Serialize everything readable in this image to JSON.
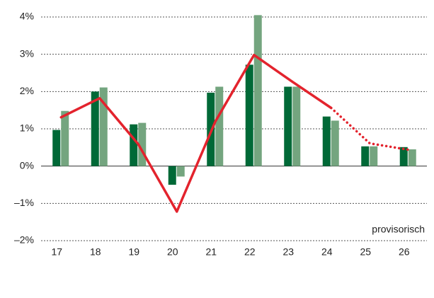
{
  "chart_data": {
    "type": "bar",
    "categories": [
      "17",
      "18",
      "19",
      "20",
      "21",
      "22",
      "23",
      "24",
      "25",
      "26"
    ],
    "series": [
      {
        "kind": "bar",
        "color": "#006937",
        "values": [
          0.97,
          2.0,
          1.12,
          -0.5,
          1.97,
          2.72,
          2.13,
          1.33,
          0.53,
          0.51
        ]
      },
      {
        "kind": "bar",
        "color": "#74a57f",
        "values": [
          1.48,
          2.11,
          1.16,
          -0.28,
          2.13,
          4.05,
          2.13,
          1.22,
          0.53,
          0.45
        ]
      },
      {
        "kind": "line",
        "color": "#e3232d",
        "dash": "solid",
        "values": [
          1.31,
          1.82,
          0.59,
          -1.22,
          1.2,
          2.98,
          2.26,
          1.56,
          null,
          null
        ]
      },
      {
        "kind": "line",
        "color": "#e3232d",
        "dash": "dotted",
        "values": [
          null,
          null,
          null,
          null,
          null,
          null,
          null,
          1.56,
          0.61,
          0.44
        ]
      }
    ],
    "ylim": [
      -2,
      4
    ],
    "yticks": [
      {
        "value": -2,
        "label": "–2%"
      },
      {
        "value": -1,
        "label": "–1%"
      },
      {
        "value": 0,
        "label": "0%"
      },
      {
        "value": 1,
        "label": "1%"
      },
      {
        "value": 2,
        "label": "2%"
      },
      {
        "value": 3,
        "label": "3%"
      },
      {
        "value": 4,
        "label": "4%"
      }
    ],
    "grid": true,
    "annotation": "provisorisch"
  }
}
